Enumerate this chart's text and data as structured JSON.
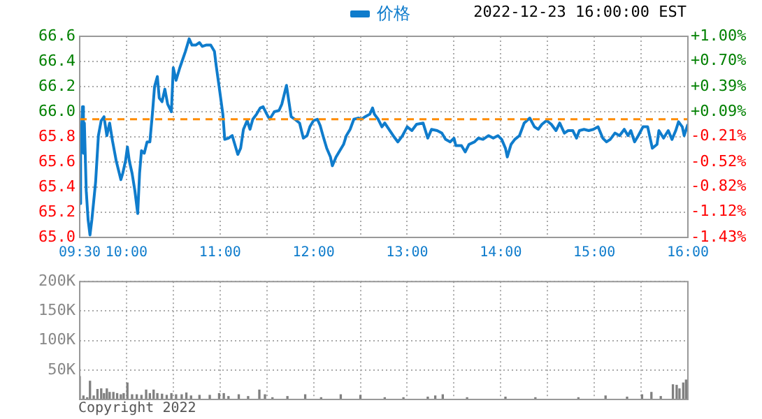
{
  "chart_data": [
    {
      "type": "line",
      "subtitle": "2022-12-23 16:00:00 EST",
      "legend": "top",
      "grid": true,
      "xlim": [
        9.5,
        16
      ],
      "xticks": [
        {
          "value": 9.5,
          "label": "09:30"
        },
        {
          "value": 10,
          "label": "10:00"
        },
        {
          "value": 10.5,
          "label": null
        },
        {
          "value": 11,
          "label": "11:00"
        },
        {
          "value": 11.5,
          "label": null
        },
        {
          "value": 12,
          "label": "12:00"
        },
        {
          "value": 12.5,
          "label": null
        },
        {
          "value": 13,
          "label": "13:00"
        },
        {
          "value": 13.5,
          "label": null
        },
        {
          "value": 14,
          "label": "14:00"
        },
        {
          "value": 14.5,
          "label": null
        },
        {
          "value": 15,
          "label": "15:00"
        },
        {
          "value": 15.5,
          "label": null
        },
        {
          "value": 16,
          "label": "16:00"
        }
      ],
      "ylim": [
        65.0,
        66.6
      ],
      "yticks": [
        {
          "value": 65.0,
          "label": "65.0"
        },
        {
          "value": 65.2,
          "label": "65.2"
        },
        {
          "value": 65.4,
          "label": "65.4"
        },
        {
          "value": 65.6,
          "label": "65.6"
        },
        {
          "value": 65.8,
          "label": "65.8"
        },
        {
          "value": 66.0,
          "label": "66.0"
        },
        {
          "value": 66.2,
          "label": "66.2"
        },
        {
          "value": 66.4,
          "label": "66.4"
        },
        {
          "value": 66.6,
          "label": "66.6"
        }
      ],
      "y2lim": [
        -1.43,
        1.0
      ],
      "y2ticks": [
        {
          "value": -1.43,
          "label": "-1.43%"
        },
        {
          "value": -1.12,
          "label": "-1.12%"
        },
        {
          "value": -0.82,
          "label": "-0.82%"
        },
        {
          "value": -0.52,
          "label": "-0.52%"
        },
        {
          "value": -0.21,
          "label": "-0.21%"
        },
        {
          "value": 0.09,
          "label": "+0.09%"
        },
        {
          "value": 0.39,
          "label": "+0.39%"
        },
        {
          "value": 0.7,
          "label": "+0.70%"
        },
        {
          "value": 1.0,
          "label": "+1.00%"
        }
      ],
      "ref_lines": [
        {
          "axis": "y",
          "value": 65.94,
          "color": "#ff8c00",
          "line_style": "dashed"
        }
      ],
      "series": [
        {
          "name": "价格",
          "color": "#0f7ccc",
          "x": [
            9.5,
            9.51,
            9.53,
            9.54,
            9.55,
            9.57,
            9.59,
            9.61,
            9.63,
            9.67,
            9.7,
            9.73,
            9.76,
            9.79,
            9.82,
            9.85,
            9.89,
            9.94,
            9.96,
            9.99,
            10.01,
            10.03,
            10.06,
            10.09,
            10.12,
            10.14,
            10.16,
            10.19,
            10.22,
            10.25,
            10.28,
            10.3,
            10.33,
            10.35,
            10.38,
            10.41,
            10.44,
            10.48,
            10.5,
            10.53,
            10.57,
            10.63,
            10.67,
            10.7,
            10.74,
            10.78,
            10.81,
            10.85,
            10.9,
            10.94,
            10.96,
            10.99,
            11.03,
            11.05,
            11.09,
            11.13,
            11.17,
            11.19,
            11.22,
            11.25,
            11.29,
            11.32,
            11.35,
            11.39,
            11.43,
            11.46,
            11.5,
            11.53,
            11.58,
            11.63,
            11.66,
            11.69,
            11.71,
            11.74,
            11.76,
            11.8,
            11.85,
            11.89,
            11.93,
            11.96,
            12.0,
            12.04,
            12.07,
            12.1,
            12.14,
            12.18,
            12.2,
            12.24,
            12.28,
            12.32,
            12.35,
            12.39,
            12.43,
            12.48,
            12.51,
            12.55,
            12.6,
            12.63,
            12.65,
            12.69,
            12.73,
            12.76,
            12.85,
            12.9,
            12.95,
            13.0,
            13.05,
            13.1,
            13.17,
            13.22,
            13.26,
            13.32,
            13.37,
            13.41,
            13.46,
            13.5,
            13.52,
            13.58,
            13.62,
            13.66,
            13.72,
            13.76,
            13.81,
            13.87,
            13.92,
            13.97,
            14.01,
            14.05,
            14.07,
            14.11,
            14.15,
            14.2,
            14.25,
            14.31,
            14.36,
            14.4,
            14.44,
            14.49,
            14.54,
            14.59,
            14.63,
            14.68,
            14.72,
            14.77,
            14.81,
            14.84,
            14.89,
            14.94,
            14.99,
            15.04,
            15.09,
            15.13,
            15.17,
            15.22,
            15.27,
            15.32,
            15.36,
            15.39,
            15.43,
            15.47,
            15.52,
            15.57,
            15.62,
            15.67,
            15.69,
            15.74,
            15.79,
            15.83,
            15.87,
            15.9,
            15.94,
            15.96,
            16.0
          ],
          "values": [
            65.27,
            65.67,
            66.04,
            65.67,
            65.91,
            65.37,
            65.14,
            65.02,
            65.14,
            65.44,
            65.81,
            65.93,
            65.96,
            65.81,
            65.91,
            65.77,
            65.61,
            65.46,
            65.51,
            65.61,
            65.72,
            65.61,
            65.51,
            65.37,
            65.19,
            65.51,
            65.69,
            65.67,
            65.76,
            65.76,
            66.01,
            66.2,
            66.28,
            66.11,
            66.08,
            66.18,
            66.06,
            66.0,
            66.35,
            66.25,
            66.35,
            66.48,
            66.58,
            66.53,
            66.53,
            66.55,
            66.52,
            66.53,
            66.53,
            66.48,
            66.36,
            66.2,
            65.98,
            65.78,
            65.79,
            65.81,
            65.71,
            65.66,
            65.71,
            65.86,
            65.93,
            65.86,
            65.94,
            65.98,
            66.03,
            66.04,
            65.98,
            65.94,
            66.0,
            66.01,
            66.06,
            66.15,
            66.21,
            66.06,
            65.96,
            65.94,
            65.91,
            65.79,
            65.81,
            65.88,
            65.93,
            65.94,
            65.89,
            65.81,
            65.71,
            65.64,
            65.57,
            65.64,
            65.69,
            65.74,
            65.81,
            65.86,
            65.94,
            65.95,
            65.94,
            65.96,
            65.98,
            66.03,
            65.98,
            65.94,
            65.88,
            65.91,
            65.81,
            65.76,
            65.81,
            65.88,
            65.85,
            65.9,
            65.91,
            65.79,
            65.86,
            65.85,
            65.83,
            65.78,
            65.76,
            65.79,
            65.73,
            65.73,
            65.68,
            65.74,
            65.76,
            65.79,
            65.78,
            65.81,
            65.79,
            65.81,
            65.78,
            65.71,
            65.64,
            65.74,
            65.78,
            65.81,
            65.91,
            65.95,
            65.88,
            65.86,
            65.9,
            65.93,
            65.9,
            65.85,
            65.91,
            65.83,
            65.85,
            65.85,
            65.79,
            65.85,
            65.86,
            65.85,
            65.86,
            65.88,
            65.79,
            65.76,
            65.78,
            65.83,
            65.81,
            65.86,
            65.81,
            65.85,
            65.76,
            65.81,
            65.88,
            65.88,
            65.71,
            65.74,
            65.85,
            65.79,
            65.85,
            65.78,
            65.85,
            65.92,
            65.88,
            65.81,
            65.9
          ]
        }
      ]
    },
    {
      "type": "bar",
      "grid": true,
      "tick_labels": "y",
      "color": "#808080",
      "annotations": [
        "Copyright 2022"
      ],
      "xlim": [
        9.5,
        16
      ],
      "xticks": [
        {
          "value": 9.5,
          "label": null
        },
        {
          "value": 10,
          "label": null
        },
        {
          "value": 10.5,
          "label": null
        },
        {
          "value": 11,
          "label": null
        },
        {
          "value": 11.5,
          "label": null
        },
        {
          "value": 12,
          "label": null
        },
        {
          "value": 12.5,
          "label": null
        },
        {
          "value": 13,
          "label": null
        },
        {
          "value": 13.5,
          "label": null
        },
        {
          "value": 14,
          "label": null
        },
        {
          "value": 14.5,
          "label": null
        },
        {
          "value": 15,
          "label": null
        },
        {
          "value": 15.5,
          "label": null
        },
        {
          "value": 16,
          "label": null
        }
      ],
      "ylim": [
        0,
        200000
      ],
      "yticks": [
        {
          "value": 0,
          "label": null
        },
        {
          "value": 50000,
          "label": "50K"
        },
        {
          "value": 100000,
          "label": "100K"
        },
        {
          "value": 150000,
          "label": "150K"
        },
        {
          "value": 200000,
          "label": "200K"
        }
      ],
      "x": [
        9.5,
        9.54,
        9.58,
        9.61,
        9.65,
        9.69,
        9.73,
        9.76,
        9.79,
        9.82,
        9.86,
        9.9,
        9.94,
        9.97,
        10.01,
        10.06,
        10.11,
        10.16,
        10.21,
        10.25,
        10.29,
        10.33,
        10.38,
        10.43,
        10.48,
        10.53,
        10.59,
        10.64,
        10.69,
        10.78,
        10.89,
        10.99,
        11.04,
        11.09,
        11.2,
        11.3,
        11.42,
        11.48,
        11.56,
        11.72,
        11.91,
        12.08,
        12.29,
        12.5,
        12.76,
        12.96,
        13.22,
        13.3,
        13.38,
        13.64,
        14.05,
        14.37,
        14.83,
        15.12,
        15.35,
        15.51,
        15.61,
        15.71,
        15.84,
        15.88,
        15.91,
        15.95,
        15.98
      ],
      "values": [
        39000,
        6000,
        3000,
        31000,
        6000,
        17000,
        18000,
        10000,
        18000,
        12000,
        12000,
        10000,
        8000,
        10000,
        28000,
        8000,
        8000,
        7000,
        16000,
        10000,
        16000,
        10000,
        9000,
        7000,
        10000,
        8000,
        8000,
        11000,
        6000,
        7000,
        7000,
        10000,
        10000,
        5000,
        8000,
        5000,
        16000,
        8000,
        3000,
        5000,
        8000,
        3000,
        8000,
        7000,
        3000,
        3000,
        4000,
        6000,
        8000,
        3000,
        4000,
        3000,
        3000,
        6000,
        4000,
        8000,
        12000,
        5000,
        25000,
        24000,
        18000,
        28000,
        33000
      ]
    }
  ]
}
